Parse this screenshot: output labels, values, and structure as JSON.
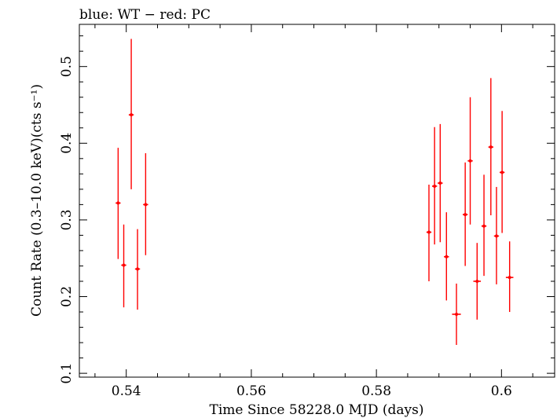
{
  "chart_data": {
    "type": "scatter",
    "title": "blue: WT − red: PC",
    "xlabel": "Time Since 58228.0 MJD (days)",
    "ylabel": "Count Rate (0.3–10.0 keV)(cts s⁻¹)",
    "xlim": [
      0.5325,
      0.6085
    ],
    "ylim": [
      0.095,
      0.555
    ],
    "x_ticks": [
      0.54,
      0.56,
      0.58,
      0.6
    ],
    "x_tick_labels": [
      "0.54",
      "0.56",
      "0.58",
      "0.6"
    ],
    "y_ticks": [
      0.1,
      0.2,
      0.3,
      0.4,
      0.5
    ],
    "y_tick_labels": [
      "0.1",
      "0.2",
      "0.3",
      "0.4",
      "0.5"
    ],
    "grid": false,
    "series": [
      {
        "name": "PC",
        "color": "#ff0000",
        "points": [
          {
            "x": 0.5387,
            "xerr": 0.0004,
            "y": 0.322,
            "ylo": 0.249,
            "yhi": 0.394
          },
          {
            "x": 0.5396,
            "xerr": 0.0004,
            "y": 0.241,
            "ylo": 0.186,
            "yhi": 0.294
          },
          {
            "x": 0.5408,
            "xerr": 0.0004,
            "y": 0.437,
            "ylo": 0.34,
            "yhi": 0.536
          },
          {
            "x": 0.5418,
            "xerr": 0.0004,
            "y": 0.236,
            "ylo": 0.183,
            "yhi": 0.288
          },
          {
            "x": 0.5431,
            "xerr": 0.0004,
            "y": 0.32,
            "ylo": 0.254,
            "yhi": 0.387
          },
          {
            "x": 0.5884,
            "xerr": 0.0004,
            "y": 0.284,
            "ylo": 0.22,
            "yhi": 0.346
          },
          {
            "x": 0.5893,
            "xerr": 0.0004,
            "y": 0.344,
            "ylo": 0.268,
            "yhi": 0.421
          },
          {
            "x": 0.5902,
            "xerr": 0.0004,
            "y": 0.348,
            "ylo": 0.271,
            "yhi": 0.425
          },
          {
            "x": 0.5912,
            "xerr": 0.0004,
            "y": 0.252,
            "ylo": 0.195,
            "yhi": 0.31
          },
          {
            "x": 0.5928,
            "xerr": 0.0007,
            "y": 0.177,
            "ylo": 0.137,
            "yhi": 0.217
          },
          {
            "x": 0.5942,
            "xerr": 0.0004,
            "y": 0.307,
            "ylo": 0.24,
            "yhi": 0.375
          },
          {
            "x": 0.595,
            "xerr": 0.0004,
            "y": 0.377,
            "ylo": 0.294,
            "yhi": 0.46
          },
          {
            "x": 0.5961,
            "xerr": 0.0006,
            "y": 0.22,
            "ylo": 0.17,
            "yhi": 0.27
          },
          {
            "x": 0.5972,
            "xerr": 0.0004,
            "y": 0.292,
            "ylo": 0.227,
            "yhi": 0.359
          },
          {
            "x": 0.5983,
            "xerr": 0.0004,
            "y": 0.395,
            "ylo": 0.306,
            "yhi": 0.485
          },
          {
            "x": 0.5992,
            "xerr": 0.0004,
            "y": 0.279,
            "ylo": 0.216,
            "yhi": 0.343
          },
          {
            "x": 0.6001,
            "xerr": 0.0004,
            "y": 0.362,
            "ylo": 0.283,
            "yhi": 0.442
          },
          {
            "x": 0.6013,
            "xerr": 0.0006,
            "y": 0.225,
            "ylo": 0.18,
            "yhi": 0.272
          }
        ]
      }
    ]
  }
}
